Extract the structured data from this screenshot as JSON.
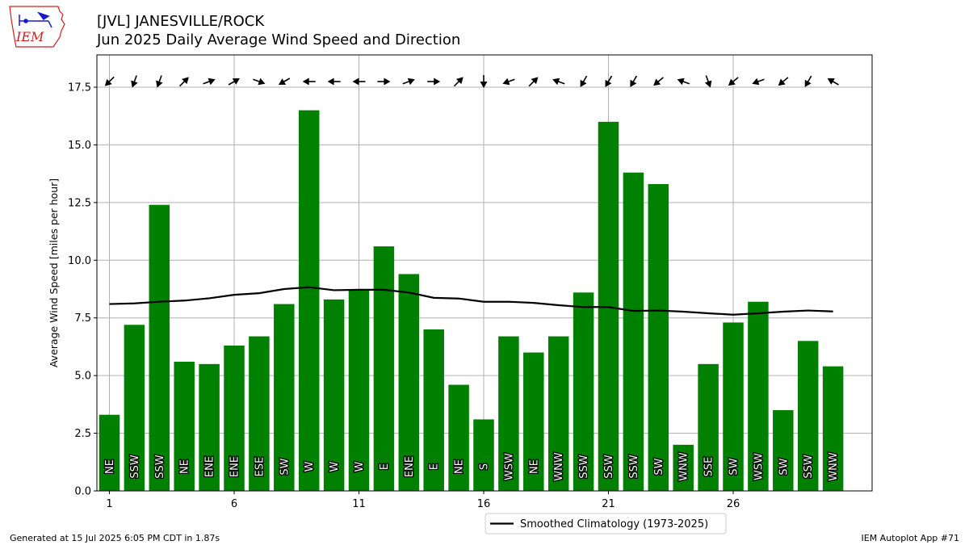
{
  "header": {
    "title_line1": "[JVL] JANESVILLE/ROCK",
    "title_line2": "Jun 2025 Daily Average Wind Speed and Direction",
    "logo_text": "IEM"
  },
  "footer": {
    "generated": "Generated at 15 Jul 2025 6:05 PM CDT in 1.87s",
    "app": "IEM Autoplot App #71"
  },
  "colors": {
    "bar": "#008000",
    "climo": "#000000",
    "grid": "#b0b0b0",
    "logo_red": "#cc2222",
    "logo_blue": "#1a1acc"
  },
  "chart_data": {
    "type": "bar",
    "ylabel": "Average Wind Speed [miles per hour]",
    "xlabel": "",
    "ylim": [
      0,
      18.9
    ],
    "yticks": [
      "0.0",
      "2.5",
      "5.0",
      "7.5",
      "10.0",
      "12.5",
      "15.0",
      "17.5"
    ],
    "xticks": [
      1,
      6,
      11,
      16,
      21,
      26
    ],
    "grid": true,
    "legend_position": "bottom-center-below-axes",
    "days": [
      1,
      2,
      3,
      4,
      5,
      6,
      7,
      8,
      9,
      10,
      11,
      12,
      13,
      14,
      15,
      16,
      17,
      18,
      19,
      20,
      21,
      22,
      23,
      24,
      25,
      26,
      27,
      28,
      29,
      30
    ],
    "series": [
      {
        "name": "Daily Average Wind Speed",
        "values": [
          3.3,
          7.2,
          12.4,
          5.6,
          5.5,
          6.3,
          6.7,
          8.1,
          16.5,
          8.3,
          8.7,
          10.6,
          9.4,
          7.0,
          4.6,
          3.1,
          6.7,
          6.0,
          6.7,
          8.6,
          16.0,
          13.8,
          13.3,
          2.0,
          5.5,
          7.3,
          8.2,
          3.5,
          6.5,
          5.4
        ],
        "directions": [
          "NE",
          "SSW",
          "SSW",
          "NE",
          "ENE",
          "ENE",
          "ESE",
          "SW",
          "W",
          "W",
          "W",
          "E",
          "ENE",
          "E",
          "NE",
          "S",
          "WSW",
          "NE",
          "WNW",
          "SSW",
          "SSW",
          "SSW",
          "SW",
          "WNW",
          "SSE",
          "SW",
          "WSW",
          "SW",
          "SSW",
          "WNW"
        ]
      },
      {
        "name": "Smoothed Climatology (1973-2025)",
        "values": [
          8.1,
          8.13,
          8.2,
          8.25,
          8.35,
          8.5,
          8.57,
          8.75,
          8.83,
          8.7,
          8.72,
          8.72,
          8.6,
          8.37,
          8.34,
          8.2,
          8.2,
          8.15,
          8.05,
          7.97,
          7.97,
          7.8,
          7.82,
          7.77,
          7.7,
          7.64,
          7.7,
          7.77,
          7.82,
          7.78
        ]
      }
    ],
    "arrow_directions_deg": [
      225,
      200,
      200,
      45,
      70,
      60,
      110,
      240,
      270,
      270,
      270,
      90,
      70,
      90,
      45,
      180,
      250,
      45,
      290,
      210,
      210,
      210,
      230,
      290,
      160,
      230,
      250,
      230,
      210,
      300
    ]
  }
}
